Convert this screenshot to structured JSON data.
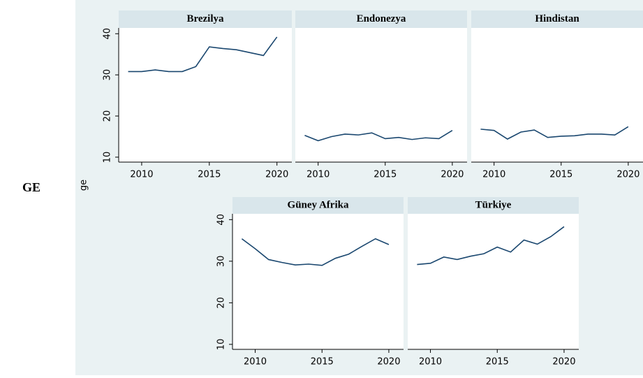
{
  "row_label": "GE",
  "ylabel": "ge",
  "chart_data": [
    {
      "type": "line",
      "title": "Brezilya",
      "x": [
        2009,
        2010,
        2011,
        2012,
        2013,
        2014,
        2015,
        2016,
        2017,
        2018,
        2019,
        2020
      ],
      "series": [
        {
          "name": "ge",
          "color": "#1a476f",
          "values": [
            30.8,
            30.8,
            31.2,
            30.8,
            30.8,
            32,
            36.8,
            36.4,
            36.1,
            35.4,
            34.7,
            39.2
          ]
        }
      ],
      "xlim": [
        2008.3,
        2021.1
      ],
      "xticks": [
        2010,
        2015,
        2020
      ],
      "ylim": [
        8.8,
        41.4
      ],
      "yticks": [
        10,
        20,
        30,
        40
      ]
    },
    {
      "type": "line",
      "title": "Endonezya",
      "x": [
        2009,
        2010,
        2011,
        2012,
        2013,
        2014,
        2015,
        2016,
        2017,
        2018,
        2019,
        2020
      ],
      "series": [
        {
          "name": "ge",
          "color": "#1a476f",
          "values": [
            15.3,
            14,
            15,
            15.6,
            15.4,
            15.9,
            14.5,
            14.8,
            14.3,
            14.7,
            14.5,
            16.5
          ]
        }
      ],
      "xlim": [
        2008.3,
        2021.1
      ],
      "xticks": [
        2010,
        2015,
        2020
      ],
      "ylim": [
        8.8,
        41.4
      ]
    },
    {
      "type": "line",
      "title": "Hindistan",
      "x": [
        2009,
        2010,
        2011,
        2012,
        2013,
        2014,
        2015,
        2016,
        2017,
        2018,
        2019,
        2020
      ],
      "series": [
        {
          "name": "ge",
          "color": "#1a476f",
          "values": [
            16.8,
            16.5,
            14.4,
            16.1,
            16.6,
            14.8,
            15.1,
            15.2,
            15.6,
            15.6,
            15.4,
            17.4
          ]
        }
      ],
      "xlim": [
        2008.3,
        2021.1
      ],
      "xticks": [
        2010,
        2015,
        2020
      ],
      "ylim": [
        8.8,
        41.4
      ]
    },
    {
      "type": "line",
      "title": "Güney Afrika",
      "x": [
        2009,
        2010,
        2011,
        2012,
        2013,
        2014,
        2015,
        2016,
        2017,
        2018,
        2019,
        2020
      ],
      "series": [
        {
          "name": "ge",
          "color": "#1a476f",
          "values": [
            35.4,
            33,
            30.4,
            29.7,
            29.1,
            29.3,
            29,
            30.7,
            31.7,
            33.6,
            35.4,
            34
          ]
        }
      ],
      "xlim": [
        2008.3,
        2021.1
      ],
      "xticks": [
        2010,
        2015,
        2020
      ],
      "ylim": [
        8.8,
        41.4
      ],
      "yticks": [
        10,
        20,
        30,
        40
      ]
    },
    {
      "type": "line",
      "title": "Türkiye",
      "x": [
        2009,
        2010,
        2011,
        2012,
        2013,
        2014,
        2015,
        2016,
        2017,
        2018,
        2019,
        2020
      ],
      "series": [
        {
          "name": "ge",
          "color": "#1a476f",
          "values": [
            29.2,
            29.5,
            31,
            30.4,
            31.2,
            31.8,
            33.4,
            32.2,
            35.1,
            34.1,
            35.9,
            38.3
          ]
        }
      ],
      "xlim": [
        2008.3,
        2021.1
      ],
      "xticks": [
        2010,
        2015,
        2020
      ],
      "ylim": [
        8.8,
        41.4
      ]
    }
  ]
}
